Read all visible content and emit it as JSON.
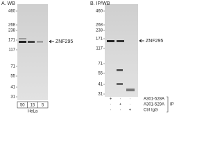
{
  "panels": [
    {
      "label": "A. WB",
      "target": "ZNF295",
      "markers": [
        460,
        268,
        238,
        171,
        117,
        71,
        55,
        41,
        31
      ],
      "lanes": [
        50,
        15,
        5
      ],
      "sample": "HeLa"
    },
    {
      "label": "B. IP/WB",
      "target": "ZNF295",
      "markers": [
        460,
        268,
        238,
        171,
        117,
        71,
        55,
        41,
        31
      ],
      "rows": [
        {
          "name": "A301-528A",
          "signs": [
            "+",
            "·",
            "·"
          ]
        },
        {
          "name": "A301-529A",
          "signs": [
            "·",
            "+",
            "·"
          ]
        },
        {
          "name": "Ctrl IgG",
          "signs": [
            "·",
            "·",
            "+"
          ]
        }
      ],
      "group": "IP"
    }
  ]
}
